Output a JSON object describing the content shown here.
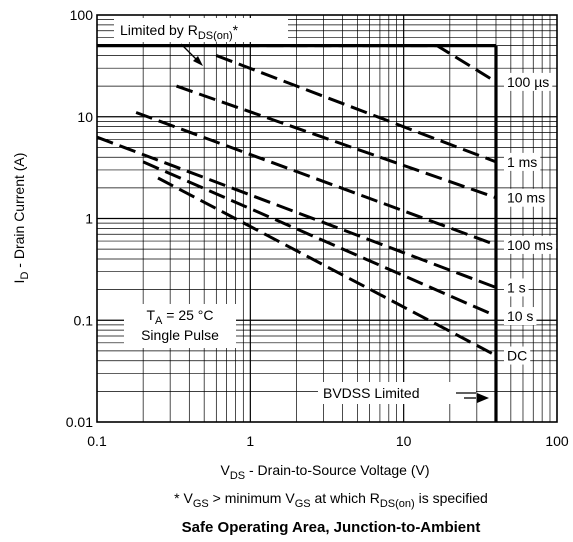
{
  "chart_data": {
    "type": "line",
    "title": "Safe Operating Area, Junction-to-Ambient",
    "footnote": {
      "prefix": "* V",
      "sub1": "GS",
      "mid": " > minimum V",
      "sub2": "GS",
      "mid2": " at which R",
      "sub3": "DS(on)",
      "suffix": " is specified"
    },
    "xlabel": {
      "main": "V",
      "sub": "DS",
      "rest": " - Drain-to-Source Voltage (V)"
    },
    "ylabel": {
      "main": "I",
      "sub": "D",
      "rest": " - Drain Current (A)"
    },
    "x_scale": "log",
    "y_scale": "log",
    "xlim": [
      0.1,
      100
    ],
    "ylim": [
      0.01,
      100
    ],
    "x_ticks": [
      "0.1",
      "1",
      "10",
      "100"
    ],
    "y_ticks": [
      "0.01",
      "0.1",
      "1",
      "10",
      "100"
    ],
    "grid": true,
    "limits": {
      "rds_on_label": {
        "main": "Limited by R",
        "sub": "DS(on)",
        "suffix": "*"
      },
      "bvdss_label": "BVDSS Limited",
      "bvdss_voltage": 40,
      "current_limit": 50
    },
    "conditions": {
      "ta_main": "T",
      "ta_sub": "A",
      "ta_rest": " = 25 °C",
      "pulse": "Single Pulse"
    },
    "series": [
      {
        "name": "100 µs",
        "points": [
          [
            0.62,
            50
          ],
          [
            4.5,
            50
          ],
          [
            16.5,
            50
          ],
          [
            40,
            22
          ]
        ]
      },
      {
        "name": "1 ms",
        "points": [
          [
            0.6,
            40
          ],
          [
            40,
            3.6
          ]
        ]
      },
      {
        "name": "10 ms",
        "points": [
          [
            0.33,
            20
          ],
          [
            40,
            1.6
          ]
        ]
      },
      {
        "name": "100 ms",
        "points": [
          [
            0.18,
            11
          ],
          [
            40,
            0.55
          ]
        ]
      },
      {
        "name": "1 s",
        "points": [
          [
            0.1,
            6.3
          ],
          [
            40,
            0.21
          ]
        ]
      },
      {
        "name": "10 s",
        "points": [
          [
            0.2,
            3.6
          ],
          [
            40,
            0.11
          ]
        ]
      },
      {
        "name": "DC",
        "points": [
          [
            0.25,
            2.5
          ],
          [
            40,
            0.045
          ]
        ]
      }
    ]
  }
}
